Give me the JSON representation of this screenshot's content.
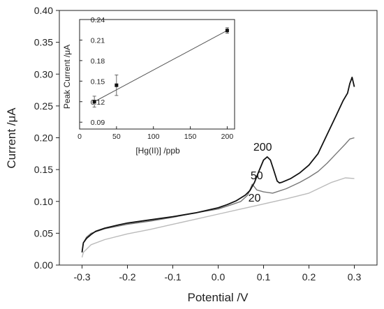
{
  "chart_data": [
    {
      "type": "line",
      "title": "",
      "xlabel": "Potential /V",
      "ylabel": "Current /μA",
      "xlim": [
        -0.35,
        0.35
      ],
      "ylim": [
        0,
        0.4
      ],
      "x_ticks": [
        "-0.3",
        "-0.2",
        "-0.1",
        "0.0",
        "0.1",
        "0.2",
        "0.3"
      ],
      "y_ticks": [
        "0.00",
        "0.05",
        "0.10",
        "0.15",
        "0.20",
        "0.25",
        "0.30",
        "0.35",
        "0.40"
      ],
      "grid": false,
      "series": [
        {
          "name": "200",
          "color": "#111111",
          "points": [
            [
              -0.3,
              0.02
            ],
            [
              -0.297,
              0.035
            ],
            [
              -0.29,
              0.042
            ],
            [
              -0.28,
              0.048
            ],
            [
              -0.27,
              0.053
            ],
            [
              -0.25,
              0.058
            ],
            [
              -0.22,
              0.063
            ],
            [
              -0.2,
              0.066
            ],
            [
              -0.15,
              0.071
            ],
            [
              -0.1,
              0.076
            ],
            [
              -0.05,
              0.082
            ],
            [
              0.0,
              0.09
            ],
            [
              0.02,
              0.095
            ],
            [
              0.04,
              0.101
            ],
            [
              0.06,
              0.11
            ],
            [
              0.07,
              0.117
            ],
            [
              0.08,
              0.13
            ],
            [
              0.09,
              0.148
            ],
            [
              0.1,
              0.165
            ],
            [
              0.108,
              0.17
            ],
            [
              0.115,
              0.165
            ],
            [
              0.122,
              0.15
            ],
            [
              0.13,
              0.132
            ],
            [
              0.135,
              0.129
            ],
            [
              0.14,
              0.13
            ],
            [
              0.16,
              0.136
            ],
            [
              0.18,
              0.145
            ],
            [
              0.2,
              0.157
            ],
            [
              0.22,
              0.175
            ],
            [
              0.24,
              0.205
            ],
            [
              0.26,
              0.235
            ],
            [
              0.275,
              0.258
            ],
            [
              0.285,
              0.27
            ],
            [
              0.29,
              0.285
            ],
            [
              0.295,
              0.295
            ],
            [
              0.3,
              0.28
            ]
          ]
        },
        {
          "name": "50",
          "color": "#777777",
          "points": [
            [
              -0.3,
              0.02
            ],
            [
              -0.297,
              0.035
            ],
            [
              -0.29,
              0.044
            ],
            [
              -0.28,
              0.05
            ],
            [
              -0.25,
              0.057
            ],
            [
              -0.2,
              0.064
            ],
            [
              -0.15,
              0.069
            ],
            [
              -0.1,
              0.075
            ],
            [
              -0.05,
              0.082
            ],
            [
              0.0,
              0.088
            ],
            [
              0.03,
              0.095
            ],
            [
              0.05,
              0.1
            ],
            [
              0.065,
              0.11
            ],
            [
              0.075,
              0.127
            ],
            [
              0.085,
              0.118
            ],
            [
              0.1,
              0.115
            ],
            [
              0.12,
              0.113
            ],
            [
              0.15,
              0.12
            ],
            [
              0.18,
              0.13
            ],
            [
              0.2,
              0.138
            ],
            [
              0.22,
              0.147
            ],
            [
              0.24,
              0.16
            ],
            [
              0.26,
              0.175
            ],
            [
              0.28,
              0.19
            ],
            [
              0.29,
              0.198
            ],
            [
              0.3,
              0.2
            ]
          ]
        },
        {
          "name": "20",
          "color": "#bbbbbb",
          "points": [
            [
              -0.3,
              0.012
            ],
            [
              -0.297,
              0.02
            ],
            [
              -0.28,
              0.032
            ],
            [
              -0.25,
              0.04
            ],
            [
              -0.2,
              0.049
            ],
            [
              -0.15,
              0.056
            ],
            [
              -0.1,
              0.064
            ],
            [
              -0.05,
              0.072
            ],
            [
              0.0,
              0.08
            ],
            [
              0.05,
              0.088
            ],
            [
              0.1,
              0.096
            ],
            [
              0.15,
              0.104
            ],
            [
              0.2,
              0.113
            ],
            [
              0.25,
              0.13
            ],
            [
              0.28,
              0.137
            ],
            [
              0.3,
              0.136
            ]
          ]
        }
      ],
      "curve_labels": [
        "200",
        "50",
        "20"
      ]
    },
    {
      "type": "scatter",
      "title": "",
      "xlabel": "[Hg(II)] /ppb",
      "ylabel": "Peak Current /μA",
      "xlim": [
        0,
        210
      ],
      "ylim": [
        0.08,
        0.24
      ],
      "x_ticks": [
        "0",
        "50",
        "100",
        "150",
        "200"
      ],
      "y_ticks": [
        "0.09",
        "0.12",
        "0.15",
        "0.18",
        "0.21",
        "0.24"
      ],
      "grid": false,
      "points": [
        {
          "x": 20,
          "y": 0.12,
          "err": 0.008
        },
        {
          "x": 50,
          "y": 0.144,
          "err": 0.015
        },
        {
          "x": 200,
          "y": 0.224,
          "err": 0.004
        }
      ],
      "fit_line": [
        [
          20,
          0.12
        ],
        [
          200,
          0.224
        ]
      ]
    }
  ]
}
